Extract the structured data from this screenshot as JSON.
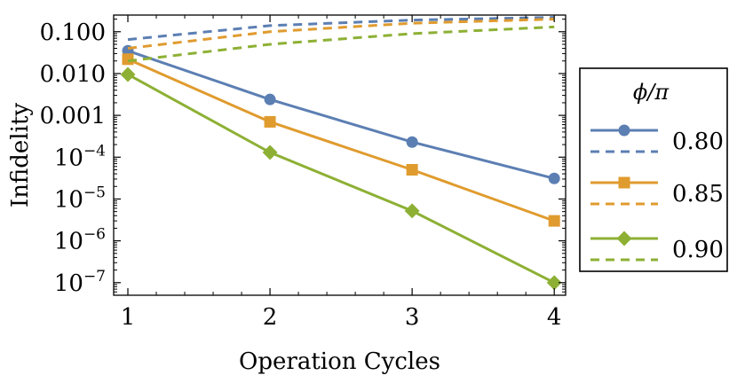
{
  "chart_data": {
    "type": "line",
    "xlabel": "Operation Cycles",
    "ylabel": "Infidelity",
    "x_ticks": [
      "1",
      "2",
      "3",
      "4"
    ],
    "y_scale": "log",
    "xlim": [
      0.9,
      4.08
    ],
    "ylim": [
      5e-08,
      0.25
    ],
    "y_ticks": [
      {
        "value": 1e-07,
        "base": "10",
        "exp": "−7"
      },
      {
        "value": 1e-06,
        "base": "10",
        "exp": "−6"
      },
      {
        "value": 1e-05,
        "base": "10",
        "exp": "−5"
      },
      {
        "value": 0.0001,
        "base": "10",
        "exp": "−4"
      },
      {
        "value": 0.001,
        "text": "0.001"
      },
      {
        "value": 0.01,
        "text": "0.010"
      },
      {
        "value": 0.1,
        "text": "0.100"
      }
    ],
    "grid": false,
    "legend": {
      "title": "ϕ/π",
      "placement": "right"
    },
    "series": [
      {
        "name": "0.80",
        "color": "#5c7fb3",
        "marker": "circle",
        "x": [
          1,
          2,
          3,
          4
        ],
        "solid": [
          0.035,
          0.0024,
          0.00023,
          3.1e-05
        ],
        "dashed": [
          0.065,
          0.14,
          0.19,
          0.22
        ]
      },
      {
        "name": "0.85",
        "color": "#e09b2e",
        "marker": "square",
        "x": [
          1,
          2,
          3,
          4
        ],
        "solid": [
          0.022,
          0.0007,
          5e-05,
          3e-06
        ],
        "dashed": [
          0.04,
          0.1,
          0.16,
          0.2
        ]
      },
      {
        "name": "0.90",
        "color": "#8db034",
        "marker": "diamond",
        "x": [
          1,
          2,
          3,
          4
        ],
        "solid": [
          0.0095,
          0.00013,
          5.2e-06,
          1e-07
        ],
        "dashed": [
          0.02,
          0.05,
          0.09,
          0.13
        ]
      }
    ]
  }
}
